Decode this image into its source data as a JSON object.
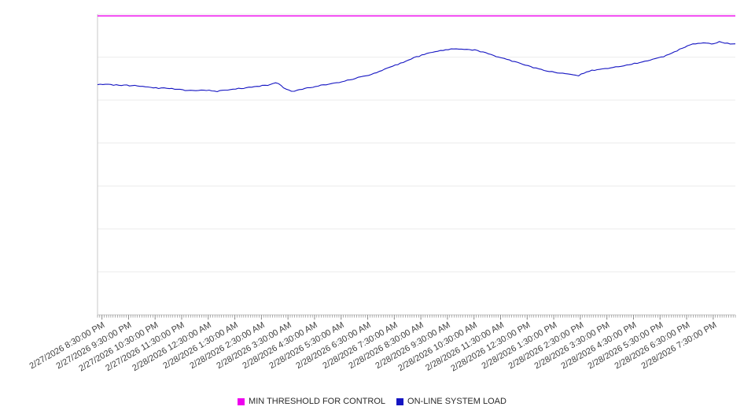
{
  "chart_data": {
    "type": "line",
    "title": "",
    "xlabel": "",
    "ylabel": "",
    "ylim": [
      30,
      100
    ],
    "grid_step": 10,
    "grid": true,
    "legend_position": "bottom",
    "x_domain_minutes": [
      0,
      1440
    ],
    "x_label_start_minute": 10,
    "x_label_step_minute": 60,
    "x_labels": [
      "2/27/2026 8:30:00 PM",
      "2/27/2026 9:30:00 PM",
      "2/27/2026 10:30:00 PM",
      "2/27/2026 11:30:00 PM",
      "2/28/2026 12:30:00 AM",
      "2/28/2026 1:30:00 AM",
      "2/28/2026 2:30:00 AM",
      "2/28/2026 3:30:00 AM",
      "2/28/2026 4:30:00 AM",
      "2/28/2026 5:30:00 AM",
      "2/28/2026 6:30:00 AM",
      "2/28/2026 7:30:00 AM",
      "2/28/2026 8:30:00 AM",
      "2/28/2026 9:30:00 AM",
      "2/28/2026 10:30:00 AM",
      "2/28/2026 11:30:00 AM",
      "2/28/2026 12:30:00 PM",
      "2/28/2026 1:30:00 PM",
      "2/28/2026 2:30:00 PM",
      "2/28/2026 3:30:00 PM",
      "2/28/2026 4:30:00 PM",
      "2/28/2026 5:30:00 PM",
      "2/28/2026 6:30:00 PM",
      "2/28/2026 7:30:00 PM"
    ],
    "series": [
      {
        "name": "MIN THRESHOLD FOR CONTROL",
        "type": "hline",
        "color": "#ee00ee",
        "value": 99.6
      },
      {
        "name": "ON-LINE SYSTEM LOAD",
        "type": "line",
        "color": "#1414c2",
        "points": [
          [
            0,
            83.7
          ],
          [
            46,
            83.5
          ],
          [
            91,
            83.3
          ],
          [
            135,
            82.8
          ],
          [
            179,
            82.6
          ],
          [
            206,
            82.2
          ],
          [
            241,
            82.4
          ],
          [
            268,
            82.0
          ],
          [
            312,
            82.6
          ],
          [
            348,
            83.0
          ],
          [
            384,
            83.5
          ],
          [
            405,
            84.2
          ],
          [
            423,
            82.6
          ],
          [
            440,
            81.9
          ],
          [
            472,
            82.8
          ],
          [
            508,
            83.5
          ],
          [
            543,
            84.1
          ],
          [
            579,
            85.0
          ],
          [
            614,
            85.9
          ],
          [
            650,
            87.2
          ],
          [
            685,
            88.6
          ],
          [
            721,
            90.1
          ],
          [
            756,
            91.2
          ],
          [
            792,
            91.8
          ],
          [
            827,
            91.9
          ],
          [
            854,
            91.6
          ],
          [
            881,
            90.8
          ],
          [
            916,
            89.7
          ],
          [
            952,
            88.6
          ],
          [
            987,
            87.5
          ],
          [
            1023,
            86.6
          ],
          [
            1058,
            86.1
          ],
          [
            1085,
            85.7
          ],
          [
            1111,
            86.8
          ],
          [
            1147,
            87.3
          ],
          [
            1182,
            87.9
          ],
          [
            1218,
            88.6
          ],
          [
            1253,
            89.4
          ],
          [
            1289,
            90.5
          ],
          [
            1316,
            91.9
          ],
          [
            1342,
            93.0
          ],
          [
            1369,
            93.4
          ],
          [
            1387,
            93.0
          ],
          [
            1404,
            93.6
          ],
          [
            1422,
            93.2
          ],
          [
            1440,
            93.0
          ]
        ]
      }
    ],
    "colors": {
      "gridline": "#ececec",
      "axis": "#c8c8c8",
      "tick": "#8a8a8a",
      "label_text": "#404040"
    }
  }
}
